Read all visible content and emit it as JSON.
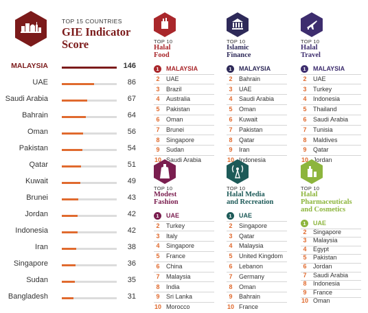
{
  "score_panel": {
    "kicker": "TOP 15 COUNTRIES",
    "title_line1": "GIE Indicator",
    "title_line2": "Score",
    "color": "#7b1a1a",
    "bar_color": "#e06a2e",
    "leader_bar_color": "#7b1a1a"
  },
  "chart_data": {
    "type": "bar",
    "orientation": "horizontal",
    "title": "TOP 15 COUNTRIES GIE Indicator Score",
    "categories": [
      "MALAYSIA",
      "UAE",
      "Saudi Arabia",
      "Bahrain",
      "Oman",
      "Pakistan",
      "Qatar",
      "Kuwait",
      "Brunei",
      "Jordan",
      "Indonesia",
      "Iran",
      "Singapore",
      "Sudan",
      "Bangladesh"
    ],
    "values": [
      146,
      86,
      67,
      64,
      56,
      54,
      51,
      49,
      43,
      42,
      42,
      38,
      36,
      35,
      31
    ],
    "xlim": [
      0,
      146
    ]
  },
  "categories": [
    {
      "top_label": "TOP 10",
      "title_lines": [
        "Halal",
        "Food"
      ],
      "color": "#a9272b",
      "icon": "food-jar-icon",
      "ranks": [
        "MALAYSIA",
        "UAE",
        "Brazil",
        "Australia",
        "Pakistan",
        "Oman",
        "Brunei",
        "Singapore",
        "Sudan",
        "Saudi Arabia"
      ]
    },
    {
      "top_label": "TOP 10",
      "title_lines": [
        "Islamic",
        "Finance"
      ],
      "color": "#2e2a59",
      "icon": "bank-icon",
      "ranks": [
        "MALAYSIA",
        "Bahrain",
        "UAE",
        "Saudi Arabia",
        "Oman",
        "Kuwait",
        "Pakistan",
        "Qatar",
        "Iran",
        "Indonesia"
      ]
    },
    {
      "top_label": "TOP 10",
      "title_lines": [
        "Halal",
        "Travel"
      ],
      "color": "#3d2d6e",
      "icon": "airplane-icon",
      "ranks": [
        "MALAYSIA",
        "UAE",
        "Turkey",
        "Indonesia",
        "Thailand",
        "Saudi Arabia",
        "Tunisia",
        "Maldives",
        "Qatar",
        "Jordan"
      ]
    },
    {
      "top_label": "TOP 10",
      "title_lines": [
        "Modest",
        "Fashion"
      ],
      "color": "#7a1e4f",
      "icon": "dress-icon",
      "ranks": [
        "UAE",
        "Turkey",
        "Italy",
        "Singapore",
        "France",
        "China",
        "Malaysia",
        "India",
        "Sri Lanka",
        "Morocco"
      ]
    },
    {
      "top_label": "TOP 10",
      "title_lines": [
        "Halal Media",
        "and Recreation"
      ],
      "color": "#1d5a58",
      "icon": "broadcast-tower-icon",
      "ranks": [
        "UAE",
        "Singapore",
        "Qatar",
        "Malaysia",
        "United Kingdom",
        "Lebanon",
        "Germany",
        "Oman",
        "Bahrain",
        "France"
      ]
    },
    {
      "top_label": "TOP 10",
      "title_lines": [
        "Halal",
        "Pharmaceuticals",
        "and Cosmetics"
      ],
      "color": "#8db53d",
      "icon": "cosmetics-bottle-icon",
      "ranks": [
        "UAE",
        "Singapore",
        "Malaysia",
        "Egypt",
        "Pakistan",
        "Jordan",
        "Saudi Arabia",
        "Indonesia",
        "France",
        "Oman"
      ]
    }
  ]
}
